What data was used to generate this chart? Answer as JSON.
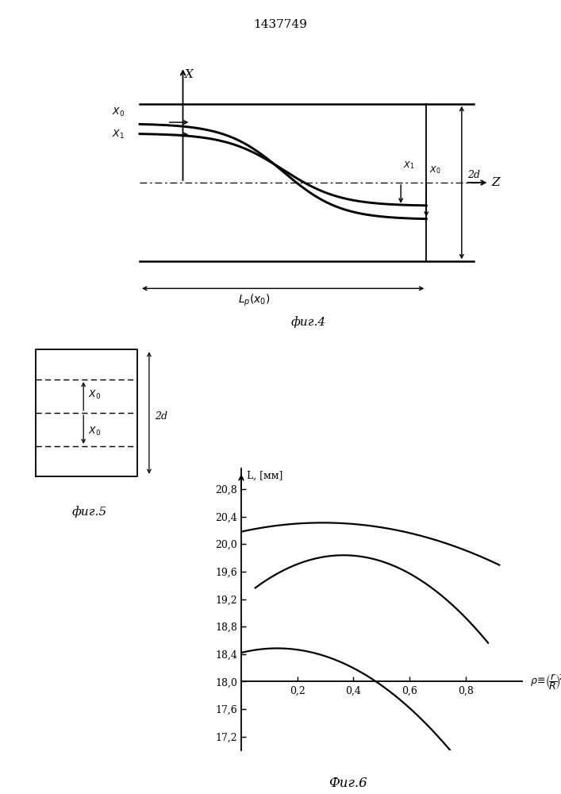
{
  "patent_number": "1437749",
  "fig4_caption": "фиг.4",
  "fig5_caption": "фиг.5",
  "fig6_caption": "Фиг.6",
  "fig6_ylabel": "L, [мм]",
  "fig6_yticks": [
    17.2,
    17.6,
    18.0,
    18.4,
    18.8,
    19.2,
    19.6,
    20.0,
    20.4,
    20.8
  ],
  "fig6_xticks": [
    0.2,
    0.4,
    0.6,
    0.8
  ],
  "fig6_xlim": [
    0.0,
    1.0
  ],
  "fig6_ylim": [
    17.0,
    21.1
  ],
  "background_color": "#ffffff",
  "line_color": "#000000"
}
